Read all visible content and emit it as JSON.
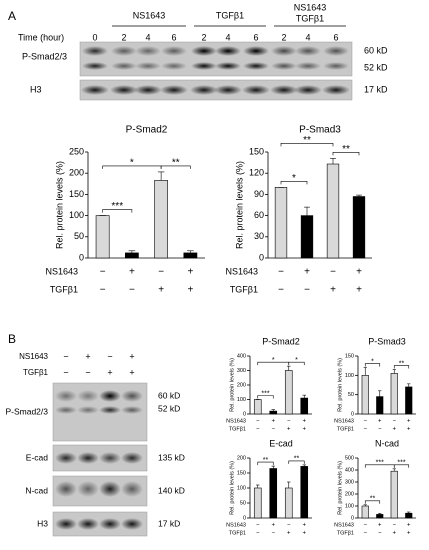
{
  "panel_a": {
    "label": "A",
    "time_label": "Time (hour)",
    "times": [
      "0",
      "2",
      "4",
      "6",
      "2",
      "4",
      "6",
      "2",
      "4",
      "6"
    ],
    "groups": [
      [
        "NS1643"
      ],
      [
        "TGFβ1"
      ],
      [
        "NS1643",
        "TGFβ1"
      ]
    ],
    "rows": [
      {
        "name": "P-Smad2/3",
        "markers": [
          "60 kD",
          "52 kD"
        ]
      },
      {
        "name": "H3",
        "markers": [
          "17 kD"
        ]
      }
    ]
  },
  "panel_b": {
    "label": "B",
    "treatments": [
      {
        "name": "NS1643",
        "signs": [
          "−",
          "+",
          "−",
          "+"
        ]
      },
      {
        "name": "TGFβ1",
        "signs": [
          "−",
          "−",
          "+",
          "+"
        ]
      }
    ],
    "rows": [
      {
        "name": "P-Smad2/3",
        "markers": [
          "60 kD",
          "52 kD"
        ]
      },
      {
        "name": "E-cad",
        "markers": [
          "135 kD"
        ]
      },
      {
        "name": "N-cad",
        "markers": [
          "140 kD"
        ]
      },
      {
        "name": "H3",
        "markers": [
          "17 kD"
        ]
      }
    ]
  },
  "chart_data": [
    {
      "type": "bar",
      "title": "P-Smad2",
      "ylabel": "Rel. protein levels (%)",
      "values": [
        100,
        12,
        183,
        12
      ],
      "errors": [
        0,
        5,
        20,
        5
      ],
      "colors": [
        "#d9d9d9",
        "#000000",
        "#d9d9d9",
        "#000000"
      ],
      "ylim": [
        0,
        250
      ],
      "yticks": [
        0,
        50,
        100,
        150,
        200,
        250
      ],
      "annotations": [
        "***",
        "*",
        "**"
      ],
      "rows": [
        {
          "name": "NS1643",
          "signs": [
            "−",
            "+",
            "−",
            "+"
          ]
        },
        {
          "name": "TGFβ1",
          "signs": [
            "−",
            "−",
            "+",
            "+"
          ]
        }
      ]
    },
    {
      "type": "bar",
      "title": "P-Smad3",
      "ylabel": "Rel. protein levels (%)",
      "values": [
        100,
        60,
        133,
        87
      ],
      "errors": [
        0,
        12,
        8,
        2
      ],
      "colors": [
        "#d9d9d9",
        "#000000",
        "#d9d9d9",
        "#000000"
      ],
      "ylim": [
        0,
        150
      ],
      "yticks": [
        0,
        30,
        60,
        90,
        120,
        150
      ],
      "annotations": [
        "*",
        "**",
        "**"
      ],
      "rows": [
        {
          "name": "NS1643",
          "signs": [
            "−",
            "+",
            "−",
            "+"
          ]
        },
        {
          "name": "TGFβ1",
          "signs": [
            "−",
            "−",
            "+",
            "+"
          ]
        }
      ]
    },
    {
      "type": "bar",
      "title": "P-Smad2",
      "ylabel": "Rel. protein levels (%)",
      "values": [
        100,
        20,
        300,
        110
      ],
      "errors": [
        0,
        10,
        30,
        20
      ],
      "colors": [
        "#d9d9d9",
        "#000000",
        "#d9d9d9",
        "#000000"
      ],
      "ylim": [
        0,
        400
      ],
      "yticks": [
        0,
        100,
        200,
        300,
        400
      ],
      "annotations": [
        "***",
        "*",
        "*"
      ],
      "rows": [
        {
          "name": "NS1643",
          "signs": [
            "−",
            "+",
            "−",
            "+"
          ]
        },
        {
          "name": "TGFβ1",
          "signs": [
            "−",
            "−",
            "+",
            "+"
          ]
        }
      ]
    },
    {
      "type": "bar",
      "title": "P-Smad3",
      "ylabel": "Rel. protein levels (%)",
      "values": [
        100,
        45,
        105,
        70
      ],
      "errors": [
        20,
        15,
        10,
        8
      ],
      "colors": [
        "#d9d9d9",
        "#000000",
        "#d9d9d9",
        "#000000"
      ],
      "ylim": [
        0,
        150
      ],
      "yticks": [
        0,
        50,
        100,
        150
      ],
      "annotations": [
        "*",
        "**"
      ],
      "rows": [
        {
          "name": "NS1643",
          "signs": [
            "−",
            "+",
            "−",
            "+"
          ]
        },
        {
          "name": "TGFβ1",
          "signs": [
            "−",
            "−",
            "+",
            "+"
          ]
        }
      ]
    },
    {
      "type": "bar",
      "title": "E-cad",
      "ylabel": "Rel. protein levels (%)",
      "values": [
        100,
        165,
        100,
        172
      ],
      "errors": [
        10,
        8,
        20,
        5
      ],
      "colors": [
        "#d9d9d9",
        "#000000",
        "#d9d9d9",
        "#000000"
      ],
      "ylim": [
        0,
        200
      ],
      "yticks": [
        0,
        50,
        100,
        150,
        200
      ],
      "annotations": [
        "**",
        "**"
      ],
      "rows": [
        {
          "name": "NS1643",
          "signs": [
            "−",
            "+",
            "−",
            "+"
          ]
        },
        {
          "name": "TGFβ1",
          "signs": [
            "−",
            "−",
            "+",
            "+"
          ]
        }
      ]
    },
    {
      "type": "bar",
      "title": "N-cad",
      "ylabel": "Rel. protein levels (%)",
      "values": [
        100,
        30,
        390,
        40
      ],
      "errors": [
        10,
        8,
        20,
        10
      ],
      "colors": [
        "#d9d9d9",
        "#000000",
        "#d9d9d9",
        "#000000"
      ],
      "ylim": [
        0,
        500
      ],
      "yticks": [
        0,
        100,
        200,
        300,
        400,
        500
      ],
      "annotations": [
        "**",
        "***",
        "***"
      ],
      "rows": [
        {
          "name": "NS1643",
          "signs": [
            "−",
            "+",
            "−",
            "+"
          ]
        },
        {
          "name": "TGFβ1",
          "signs": [
            "−",
            "−",
            "+",
            "+"
          ]
        }
      ]
    }
  ]
}
